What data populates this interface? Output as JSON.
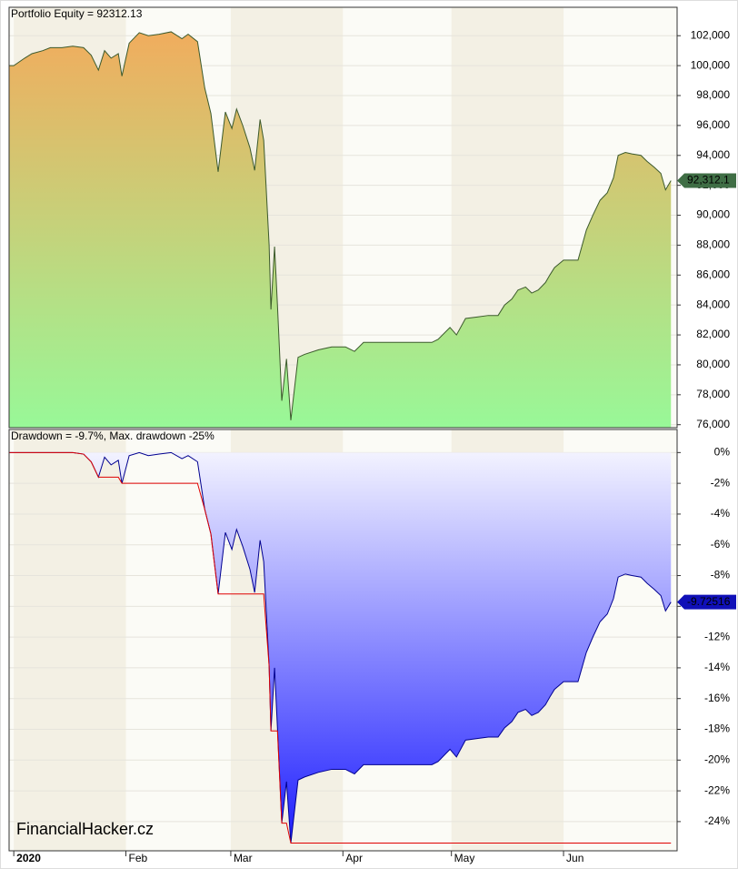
{
  "watermark": "FinancialHacker.cz",
  "chart_data": [
    {
      "type": "area",
      "title": "Portfolio Equity = 92312.13",
      "x": [
        -1.2,
        0,
        3.0,
        5.0,
        8.0,
        10.1,
        13.3,
        16.3,
        19.3,
        21.4,
        23.4,
        25.1,
        26.9,
        28.9,
        29.9,
        31.9,
        34.7,
        37.2,
        40.2,
        43.5,
        46.5,
        48.2,
        50.8,
        52.8,
        54.5,
        56.5,
        58.5,
        60.3,
        61.6,
        63.3,
        65.3,
        66.6,
        68.1,
        69.1,
        70.6,
        71.1,
        72.1,
        72.9,
        74.1,
        75.4,
        76.6,
        78.6,
        80.4,
        84.2,
        87.9,
        91.7,
        94.2,
        96.7,
        105.5,
        115.6,
        117.3,
        120.6,
        122.4,
        124.9,
        128.1,
        131.2,
        133.9,
        135.7,
        137.7,
        139.4,
        141.5,
        143.2,
        145.0,
        147.0,
        148.2,
        149.5,
        152.0,
        156.0,
        158.3,
        160.1,
        162.1,
        164.1,
        165.8,
        167.1,
        169.1,
        170.9,
        173.4,
        175.1,
        177.1,
        178.9,
        180.2,
        181.7
      ],
      "series": [
        {
          "color": "#3c5a2c",
          "fill": true,
          "values": [
            100000,
            100000,
            100500,
            100800,
            101000,
            101200,
            101200,
            101300,
            101200,
            100700,
            99700,
            101000,
            100500,
            100800,
            99300,
            101500,
            102200,
            102000,
            102100,
            102260,
            101800,
            102100,
            101600,
            98500,
            96800,
            92900,
            96900,
            95800,
            97100,
            96000,
            94500,
            93000,
            96400,
            95000,
            88000,
            83700,
            87900,
            84000,
            77600,
            80400,
            76300,
            80500,
            80700,
            81000,
            81200,
            81200,
            80900,
            81500,
            81500,
            81500,
            81700,
            82500,
            82000,
            83100,
            83200,
            83300,
            83300,
            84000,
            84400,
            85000,
            85200,
            84800,
            85000,
            85500,
            86000,
            86500,
            87000,
            87000,
            89000,
            90000,
            91000,
            91500,
            92500,
            94000,
            94200,
            94100,
            94000,
            93600,
            93200,
            92800,
            91700,
            92312.13
          ]
        }
      ],
      "fill_gradient": [
        "#f6a85a",
        "#98f898"
      ],
      "xlim": [
        -1.3,
        183.4
      ],
      "ylim": [
        75800,
        103900
      ],
      "yticks": [
        {
          "value": 76000,
          "label": "76,000"
        },
        {
          "value": 78000,
          "label": "78,000"
        },
        {
          "value": 80000,
          "label": "80,000"
        },
        {
          "value": 82000,
          "label": "82,000"
        },
        {
          "value": 84000,
          "label": "84,000"
        },
        {
          "value": 86000,
          "label": "86,000"
        },
        {
          "value": 88000,
          "label": "88,000"
        },
        {
          "value": 90000,
          "label": "90,000"
        },
        {
          "value": 92000,
          "label": "92,000"
        },
        {
          "value": 94000,
          "label": "94,000"
        },
        {
          "value": 96000,
          "label": "96,000"
        },
        {
          "value": 98000,
          "label": "98,000"
        },
        {
          "value": 100000,
          "label": "100,000"
        },
        {
          "value": 102000,
          "label": "102,000"
        }
      ],
      "grid": true,
      "end_tag": {
        "value": 92312.13,
        "label": "92,312.1",
        "color": "#3f6e45",
        "text_color": "#000"
      }
    },
    {
      "type": "area",
      "title": "Drawdown = -9.7%, Max. drawdown -25%",
      "x": [
        -1.2,
        0,
        3.0,
        5.0,
        8.0,
        10.1,
        13.3,
        16.3,
        19.3,
        21.4,
        23.4,
        25.1,
        26.9,
        28.9,
        29.9,
        31.9,
        34.7,
        37.2,
        40.2,
        43.5,
        46.5,
        48.2,
        50.8,
        52.8,
        54.5,
        56.5,
        58.5,
        60.3,
        61.6,
        63.3,
        65.3,
        66.6,
        68.1,
        69.1,
        70.6,
        71.1,
        72.1,
        72.9,
        74.1,
        75.4,
        76.6,
        78.6,
        80.4,
        84.2,
        87.9,
        91.7,
        94.2,
        96.7,
        105.5,
        115.6,
        117.3,
        120.6,
        122.4,
        124.9,
        128.1,
        131.2,
        133.9,
        135.7,
        137.7,
        139.4,
        141.5,
        143.2,
        145.0,
        147.0,
        148.2,
        149.5,
        152.0,
        156.0,
        158.3,
        160.1,
        162.1,
        164.1,
        165.8,
        167.1,
        169.1,
        170.9,
        173.4,
        175.1,
        177.1,
        178.9,
        180.2,
        181.7
      ],
      "series": [
        {
          "color": "#e00000",
          "fill": false,
          "values": [
            0,
            0,
            0,
            0,
            0,
            0,
            0,
            0,
            -0.1,
            -0.6,
            -1.6,
            -1.6,
            -1.6,
            -1.6,
            -2.0,
            -2.0,
            -2.0,
            -2.0,
            -2.0,
            -2.0,
            -2.0,
            -2.0,
            -2.0,
            -3.7,
            -5.3,
            -9.2,
            -9.2,
            -9.2,
            -9.2,
            -9.2,
            -9.2,
            -9.2,
            -9.2,
            -9.2,
            -13.9,
            -18.1,
            -18.1,
            -18.1,
            -24.1,
            -24.1,
            -25.4,
            -25.4,
            -25.4,
            -25.4,
            -25.4,
            -25.4,
            -25.4,
            -25.4,
            -25.4,
            -25.4,
            -25.4,
            -25.4,
            -25.4,
            -25.4,
            -25.4,
            -25.4,
            -25.4,
            -25.4,
            -25.4,
            -25.4,
            -25.4,
            -25.4,
            -25.4,
            -25.4,
            -25.4,
            -25.4,
            -25.4,
            -25.4,
            -25.4,
            -25.4,
            -25.4,
            -25.4,
            -25.4,
            -25.4,
            -25.4,
            -25.4,
            -25.4,
            -25.4,
            -25.4,
            -25.4,
            -25.4,
            -25.4
          ]
        },
        {
          "color": "#000090",
          "fill": true,
          "values": [
            0,
            0,
            0,
            0,
            0,
            0,
            0,
            0,
            -0.1,
            -0.6,
            -1.6,
            -0.3,
            -0.8,
            -0.5,
            -2.0,
            -0.2,
            0,
            -0.2,
            -0.1,
            0,
            -0.4,
            -0.2,
            -0.6,
            -3.7,
            -5.3,
            -9.2,
            -5.2,
            -6.3,
            -5.0,
            -6.1,
            -7.6,
            -9.1,
            -5.7,
            -7.1,
            -13.9,
            -18.1,
            -14.0,
            -17.9,
            -24.1,
            -21.4,
            -25.4,
            -21.3,
            -21.1,
            -20.8,
            -20.6,
            -20.6,
            -20.9,
            -20.3,
            -20.3,
            -20.3,
            -20.1,
            -19.3,
            -19.8,
            -18.7,
            -18.6,
            -18.5,
            -18.5,
            -17.9,
            -17.5,
            -16.9,
            -16.7,
            -17.1,
            -16.9,
            -16.4,
            -15.9,
            -15.4,
            -14.9,
            -14.9,
            -13.0,
            -12.0,
            -11.0,
            -10.5,
            -9.5,
            -8.1,
            -7.9,
            -8.0,
            -8.1,
            -8.5,
            -8.9,
            -9.3,
            -10.3,
            -9.72516
          ]
        }
      ],
      "fill_gradient": [
        "#ffffff",
        "#1a1aff"
      ],
      "xlim": [
        -1.3,
        183.4
      ],
      "ylim": [
        -25.9,
        1.5
      ],
      "xticks": [
        {
          "value": 0,
          "label": "2020"
        },
        {
          "value": 31,
          "label": "Feb"
        },
        {
          "value": 60,
          "label": "Mar"
        },
        {
          "value": 91,
          "label": "Apr"
        },
        {
          "value": 121,
          "label": "May"
        },
        {
          "value": 152,
          "label": "Jun"
        }
      ],
      "yticks": [
        {
          "value": 0,
          "label": "0%"
        },
        {
          "value": -2,
          "label": "-2%"
        },
        {
          "value": -4,
          "label": "-4%"
        },
        {
          "value": -6,
          "label": "-6%"
        },
        {
          "value": -8,
          "label": "-8%"
        },
        {
          "value": -10,
          "label": "-10%"
        },
        {
          "value": -12,
          "label": "-12%"
        },
        {
          "value": -14,
          "label": "-14%"
        },
        {
          "value": -16,
          "label": "-16%"
        },
        {
          "value": -18,
          "label": "-18%"
        },
        {
          "value": -20,
          "label": "-20%"
        },
        {
          "value": -22,
          "label": "-22%"
        },
        {
          "value": -24,
          "label": "-24%"
        }
      ],
      "grid": true,
      "end_tag": {
        "value": -9.72516,
        "label": "-9.72516",
        "color": "#1010b8",
        "text_color": "#fff"
      }
    }
  ]
}
